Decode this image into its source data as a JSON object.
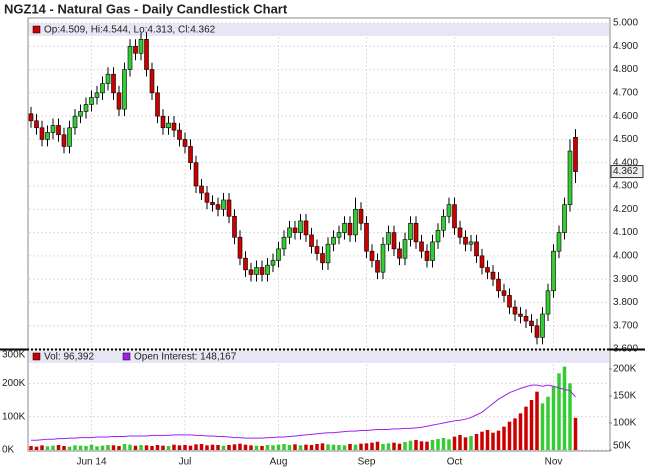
{
  "chart_data": [
    {
      "type": "candlestick",
      "title": "NGZ14 - Natural Gas - Daily Candlestick Chart",
      "legend_text": "Op:4.509, Hi:4.544, Lo:4.313, Cl:4.362",
      "last_label": "4.362",
      "up_color": "#33cc33",
      "down_color": "#cc0000",
      "grid": true,
      "ylim": [
        3.6,
        5.0
      ],
      "yticks": [
        {
          "value": 3.6,
          "label": "3.600"
        },
        {
          "value": 3.7,
          "label": "3.700"
        },
        {
          "value": 3.8,
          "label": "3.800"
        },
        {
          "value": 3.9,
          "label": "3.900"
        },
        {
          "value": 4.0,
          "label": "4.000"
        },
        {
          "value": 4.1,
          "label": "4.100"
        },
        {
          "value": 4.2,
          "label": "4.200"
        },
        {
          "value": 4.3,
          "label": "4.300"
        },
        {
          "value": 4.4,
          "label": "4.400"
        },
        {
          "value": 4.5,
          "label": "4.500"
        },
        {
          "value": 4.6,
          "label": "4.600"
        },
        {
          "value": 4.7,
          "label": "4.700"
        },
        {
          "value": 4.8,
          "label": "4.800"
        },
        {
          "value": 4.9,
          "label": "4.900"
        },
        {
          "value": 5.0,
          "label": "5.000"
        }
      ],
      "open": [
        4.61,
        4.58,
        4.55,
        4.5,
        4.53,
        4.56,
        4.52,
        4.47,
        4.55,
        4.6,
        4.62,
        4.65,
        4.68,
        4.7,
        4.74,
        4.78,
        4.7,
        4.63,
        4.8,
        4.9,
        4.87,
        4.93,
        4.8,
        4.7,
        4.6,
        4.55,
        4.57,
        4.54,
        4.5,
        4.47,
        4.4,
        4.3,
        4.27,
        4.23,
        4.22,
        4.2,
        4.24,
        4.17,
        4.08,
        3.99,
        3.94,
        3.92,
        3.95,
        3.92,
        3.96,
        3.98,
        4.03,
        4.08,
        4.12,
        4.1,
        4.15,
        4.09,
        4.04,
        4.01,
        3.97,
        4.05,
        4.08,
        4.1,
        4.14,
        4.09,
        4.2,
        4.14,
        4.02,
        3.98,
        3.93,
        4.05,
        4.1,
        4.03,
        3.99,
        4.07,
        4.14,
        4.06,
        4.02,
        3.98,
        4.06,
        4.11,
        4.17,
        4.22,
        4.12,
        4.08,
        4.05,
        4.06,
        4.0,
        3.95,
        3.93,
        3.9,
        3.85,
        3.83,
        3.78,
        3.75,
        3.74,
        3.72,
        3.7,
        3.65,
        3.75,
        3.85,
        4.02,
        4.1,
        4.22,
        4.509
      ],
      "high": [
        4.64,
        4.61,
        4.58,
        4.56,
        4.59,
        4.59,
        4.55,
        4.58,
        4.63,
        4.65,
        4.68,
        4.71,
        4.73,
        4.77,
        4.81,
        4.81,
        4.73,
        4.83,
        4.93,
        4.93,
        4.96,
        4.96,
        4.83,
        4.73,
        4.63,
        4.6,
        4.6,
        4.57,
        4.53,
        4.5,
        4.43,
        4.33,
        4.3,
        4.26,
        4.25,
        4.27,
        4.27,
        4.2,
        4.11,
        4.02,
        3.97,
        3.98,
        3.98,
        3.99,
        4.01,
        4.06,
        4.11,
        4.15,
        4.15,
        4.18,
        4.18,
        4.12,
        4.07,
        4.04,
        4.08,
        4.11,
        4.13,
        4.17,
        4.17,
        4.25,
        4.23,
        4.17,
        4.05,
        4.01,
        4.08,
        4.13,
        4.13,
        4.06,
        4.1,
        4.17,
        4.17,
        4.09,
        4.05,
        4.09,
        4.14,
        4.2,
        4.25,
        4.25,
        4.15,
        4.11,
        4.09,
        4.09,
        4.03,
        3.98,
        3.96,
        3.93,
        3.88,
        3.86,
        3.81,
        3.78,
        3.77,
        3.75,
        3.73,
        3.78,
        3.88,
        4.05,
        4.13,
        4.25,
        4.5,
        4.544
      ],
      "low": [
        4.55,
        4.52,
        4.47,
        4.47,
        4.5,
        4.49,
        4.44,
        4.44,
        4.52,
        4.57,
        4.59,
        4.62,
        4.65,
        4.67,
        4.71,
        4.67,
        4.6,
        4.6,
        4.77,
        4.84,
        4.84,
        4.77,
        4.67,
        4.57,
        4.52,
        4.52,
        4.51,
        4.47,
        4.44,
        4.37,
        4.27,
        4.24,
        4.2,
        4.19,
        4.17,
        4.17,
        4.14,
        4.05,
        3.96,
        3.91,
        3.89,
        3.89,
        3.89,
        3.89,
        3.93,
        3.95,
        4.0,
        4.05,
        4.07,
        4.07,
        4.06,
        4.01,
        3.98,
        3.94,
        3.94,
        4.02,
        4.05,
        4.07,
        4.06,
        4.06,
        4.11,
        3.99,
        3.95,
        3.9,
        3.9,
        4.02,
        4.0,
        3.96,
        3.96,
        4.04,
        4.03,
        3.99,
        3.95,
        3.95,
        4.03,
        4.08,
        4.14,
        4.09,
        4.05,
        4.02,
        4.02,
        3.97,
        3.92,
        3.9,
        3.87,
        3.82,
        3.8,
        3.75,
        3.72,
        3.71,
        3.69,
        3.67,
        3.62,
        3.62,
        3.72,
        3.82,
        3.99,
        4.07,
        4.19,
        4.313
      ],
      "close": [
        4.58,
        4.55,
        4.5,
        4.53,
        4.56,
        4.52,
        4.47,
        4.55,
        4.6,
        4.62,
        4.65,
        4.68,
        4.7,
        4.74,
        4.78,
        4.7,
        4.63,
        4.8,
        4.9,
        4.87,
        4.93,
        4.8,
        4.7,
        4.6,
        4.55,
        4.57,
        4.54,
        4.5,
        4.47,
        4.4,
        4.3,
        4.27,
        4.23,
        4.22,
        4.2,
        4.24,
        4.17,
        4.08,
        3.99,
        3.94,
        3.92,
        3.95,
        3.92,
        3.96,
        3.98,
        4.03,
        4.08,
        4.12,
        4.1,
        4.15,
        4.09,
        4.04,
        4.01,
        3.97,
        4.05,
        4.08,
        4.1,
        4.14,
        4.09,
        4.2,
        4.14,
        4.02,
        3.98,
        3.93,
        4.05,
        4.1,
        4.03,
        3.99,
        4.07,
        4.14,
        4.06,
        4.02,
        3.98,
        4.06,
        4.11,
        4.17,
        4.22,
        4.12,
        4.08,
        4.05,
        4.06,
        4.0,
        3.95,
        3.93,
        3.9,
        3.85,
        3.83,
        3.78,
        3.75,
        3.74,
        3.72,
        3.7,
        3.65,
        3.75,
        3.85,
        4.02,
        4.1,
        4.22,
        4.45,
        4.362
      ]
    },
    {
      "type": "volume",
      "categories": [
        null,
        null,
        null,
        null,
        null,
        null,
        null,
        null,
        null,
        null,
        null,
        "Jun 14",
        null,
        null,
        null,
        null,
        null,
        null,
        null,
        null,
        null,
        null,
        null,
        null,
        null,
        null,
        null,
        null,
        "Jul",
        null,
        null,
        null,
        null,
        null,
        null,
        null,
        null,
        null,
        null,
        null,
        null,
        null,
        null,
        null,
        null,
        "Aug",
        null,
        null,
        null,
        null,
        null,
        null,
        null,
        null,
        null,
        null,
        null,
        null,
        null,
        null,
        null,
        "Sep",
        null,
        null,
        null,
        null,
        null,
        null,
        null,
        null,
        null,
        null,
        null,
        null,
        null,
        null,
        null,
        "Oct",
        null,
        null,
        null,
        null,
        null,
        null,
        null,
        null,
        null,
        null,
        null,
        null,
        null,
        null,
        null,
        null,
        null,
        "Nov",
        null,
        null,
        null,
        null
      ],
      "ylim": [
        0,
        300000
      ],
      "yticks": [
        {
          "value": 0,
          "label": "0K"
        },
        {
          "value": 100000,
          "label": "100K"
        },
        {
          "value": 200000,
          "label": "200K"
        },
        {
          "value": 300000,
          "label": "300K"
        }
      ],
      "y2lim": [
        50000,
        235000
      ],
      "y2ticks": [
        {
          "value": 50000,
          "label": "50K"
        },
        {
          "value": 100000,
          "label": "100K"
        },
        {
          "value": 150000,
          "label": "150K"
        },
        {
          "value": 200000,
          "label": "200K"
        }
      ],
      "series": [
        {
          "name": "Vol: 96,392",
          "color": "#cc0000",
          "values": [
            12000,
            10000,
            14000,
            11000,
            13000,
            15000,
            12000,
            10000,
            14000,
            13000,
            12000,
            16000,
            11000,
            13000,
            15000,
            14000,
            12000,
            18000,
            16000,
            13000,
            15000,
            14000,
            12000,
            15000,
            13000,
            12000,
            16000,
            14000,
            15000,
            13000,
            17000,
            18000,
            14000,
            16000,
            15000,
            13000,
            15000,
            17000,
            19000,
            16000,
            14000,
            13000,
            12000,
            15000,
            14000,
            16000,
            18000,
            15000,
            17000,
            14000,
            16000,
            15000,
            18000,
            20000,
            17000,
            16000,
            15000,
            14000,
            18000,
            16000,
            19000,
            20000,
            22000,
            25000,
            18000,
            20000,
            22000,
            19000,
            24000,
            28000,
            30000,
            26000,
            25000,
            30000,
            33000,
            36000,
            32000,
            40000,
            45000,
            38000,
            42000,
            48000,
            55000,
            60000,
            52000,
            58000,
            70000,
            85000,
            95000,
            110000,
            130000,
            150000,
            175000,
            140000,
            160000,
            190000,
            230000,
            250000,
            200000,
            96392
          ]
        },
        {
          "name": "Open Interest: 148,167",
          "color": "#a020f0",
          "axis": "y2",
          "values": [
            68000,
            68000,
            69000,
            70000,
            70000,
            71000,
            71000,
            72000,
            72000,
            73000,
            73000,
            73000,
            74000,
            74000,
            74000,
            75000,
            75000,
            75000,
            76000,
            76000,
            76000,
            76000,
            77000,
            77000,
            77000,
            77000,
            78000,
            78000,
            78000,
            78000,
            77000,
            77000,
            76000,
            76000,
            75000,
            75000,
            74000,
            73000,
            73000,
            72000,
            72000,
            72000,
            72000,
            73000,
            73000,
            74000,
            74000,
            75000,
            76000,
            77000,
            78000,
            79000,
            80000,
            81000,
            82000,
            82000,
            83000,
            84000,
            85000,
            85000,
            86000,
            86000,
            87000,
            88000,
            88000,
            88000,
            89000,
            89000,
            90000,
            90000,
            91000,
            92000,
            94000,
            96000,
            98000,
            100000,
            102000,
            104000,
            105000,
            107000,
            110000,
            115000,
            120000,
            128000,
            136000,
            144000,
            150000,
            156000,
            160000,
            164000,
            167000,
            170000,
            170000,
            168000,
            170000,
            168000,
            165000,
            162000,
            160000,
            148167
          ]
        }
      ]
    }
  ]
}
